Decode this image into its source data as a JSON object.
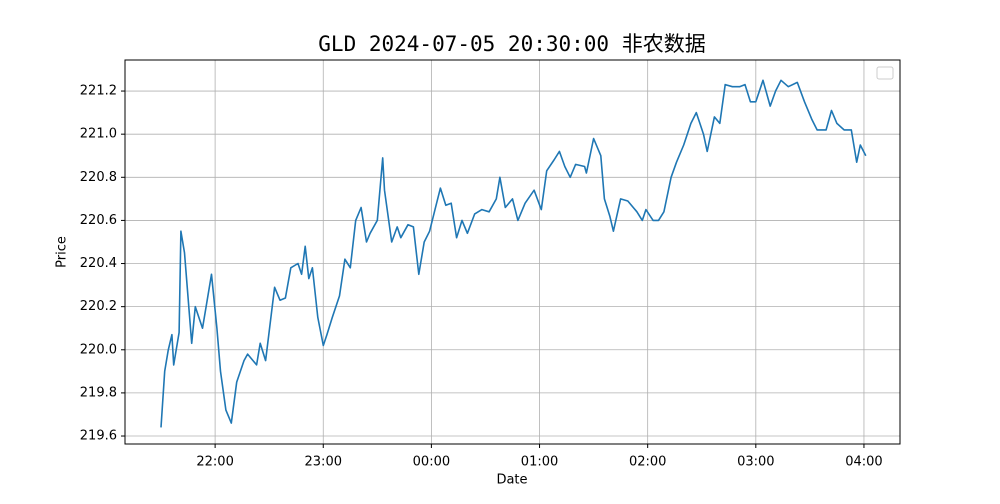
{
  "chart_data": {
    "type": "line",
    "title": "GLD 2024-07-05 20:30:00 非农数据",
    "x_label": "Date",
    "y_label": "Price",
    "x": [
      "21:30",
      "21:32",
      "21:34",
      "21:36",
      "21:37",
      "21:40",
      "21:41",
      "21:43",
      "21:47",
      "21:49",
      "21:53",
      "21:55",
      "21:58",
      "22:01",
      "22:03",
      "22:06",
      "22:09",
      "22:12",
      "22:16",
      "22:18",
      "22:23",
      "22:25",
      "22:28",
      "22:33",
      "22:36",
      "22:39",
      "22:42",
      "22:46",
      "22:48",
      "22:50",
      "22:52",
      "22:54",
      "22:57",
      "23:00",
      "23:02",
      "23:05",
      "23:09",
      "23:12",
      "23:15",
      "23:18",
      "23:21",
      "23:24",
      "23:26",
      "23:30",
      "23:33",
      "23:34",
      "23:38",
      "23:41",
      "23:43",
      "23:47",
      "23:50",
      "23:53",
      "23:56",
      "23:59",
      "00:02",
      "00:05",
      "00:08",
      "00:11",
      "00:14",
      "00:17",
      "00:20",
      "00:24",
      "00:28",
      "00:32",
      "00:36",
      "00:38",
      "00:41",
      "00:45",
      "00:48",
      "00:52",
      "00:57",
      "01:01",
      "01:04",
      "01:08",
      "01:11",
      "01:14",
      "01:17",
      "01:20",
      "01:25",
      "01:26",
      "01:30",
      "01:34",
      "01:36",
      "01:39",
      "01:41",
      "01:45",
      "01:49",
      "01:54",
      "01:57",
      "01:59",
      "02:03",
      "02:06",
      "02:09",
      "02:13",
      "02:16",
      "02:20",
      "02:24",
      "02:27",
      "02:31",
      "02:33",
      "02:37",
      "02:40",
      "02:43",
      "02:47",
      "02:51",
      "02:54",
      "02:57",
      "03:00",
      "03:04",
      "03:08",
      "03:11",
      "03:14",
      "03:18",
      "03:23",
      "03:27",
      "03:31",
      "03:34",
      "03:39",
      "03:42",
      "03:45",
      "03:49",
      "03:53",
      "03:56",
      "03:58",
      "04:01"
    ],
    "series": [
      {
        "color": "#1f77b4",
        "values": [
          219.64,
          219.9,
          220.0,
          220.07,
          219.93,
          220.08,
          220.55,
          220.45,
          220.03,
          220.2,
          220.1,
          220.2,
          220.35,
          220.1,
          219.9,
          219.72,
          219.66,
          219.85,
          219.95,
          219.98,
          219.93,
          220.03,
          219.95,
          220.29,
          220.23,
          220.24,
          220.38,
          220.4,
          220.35,
          220.48,
          220.33,
          220.38,
          220.15,
          220.02,
          220.07,
          220.15,
          220.25,
          220.42,
          220.38,
          220.6,
          220.66,
          220.5,
          220.54,
          220.6,
          220.89,
          220.74,
          220.5,
          220.57,
          220.52,
          220.58,
          220.57,
          220.35,
          220.5,
          220.55,
          220.65,
          220.75,
          220.67,
          220.68,
          220.52,
          220.6,
          220.54,
          220.63,
          220.65,
          220.64,
          220.7,
          220.8,
          220.66,
          220.7,
          220.6,
          220.68,
          220.74,
          220.65,
          220.83,
          220.88,
          220.92,
          220.85,
          220.8,
          220.86,
          220.85,
          220.82,
          220.98,
          220.9,
          220.7,
          220.62,
          220.55,
          220.7,
          220.69,
          220.64,
          220.6,
          220.65,
          220.6,
          220.6,
          220.64,
          220.8,
          220.87,
          220.95,
          221.05,
          221.1,
          221.0,
          220.92,
          221.08,
          221.05,
          221.23,
          221.22,
          221.22,
          221.23,
          221.15,
          221.15,
          221.25,
          221.13,
          221.2,
          221.25,
          221.22,
          221.24,
          221.15,
          221.07,
          221.02,
          221.02,
          221.11,
          221.05,
          221.02,
          221.02,
          220.87,
          220.95,
          220.9
        ]
      }
    ],
    "xlim": [
      "21:10",
      "04:20"
    ],
    "xticks": [
      "22:00",
      "23:00",
      "00:00",
      "01:00",
      "02:00",
      "03:00",
      "04:00"
    ],
    "ylim": [
      219.563,
      221.344
    ],
    "yticks": [
      219.6,
      219.8,
      {
        "value": 220.0,
        "label": "220.0"
      },
      220.2,
      220.4,
      220.6,
      220.8,
      {
        "value": 221.0,
        "label": "221.0"
      },
      221.2
    ],
    "grid": true
  }
}
